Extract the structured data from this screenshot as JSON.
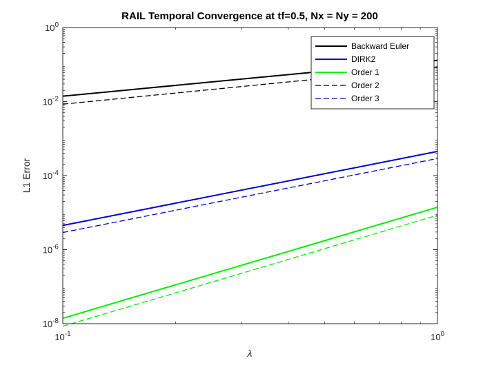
{
  "chart_data": {
    "type": "line",
    "title": "RAIL Temporal Convergence at tf=0.5, Nx = Ny = 200",
    "xlabel": "λ",
    "ylabel": "L1 Error",
    "xscale": "log",
    "yscale": "log",
    "xlim": [
      0.1,
      1
    ],
    "ylim": [
      1e-08,
      1
    ],
    "grid": false,
    "legend_position": "top-right",
    "x_ticks": [
      {
        "value": 0.1,
        "base": "10",
        "exp": "-1"
      },
      {
        "value": 1,
        "base": "10",
        "exp": "0"
      }
    ],
    "y_ticks": [
      {
        "value": 1e-08,
        "base": "10",
        "exp": "-8"
      },
      {
        "value": 1e-06,
        "base": "10",
        "exp": "-6"
      },
      {
        "value": 0.0001,
        "base": "10",
        "exp": "-4"
      },
      {
        "value": 0.01,
        "base": "10",
        "exp": "-2"
      },
      {
        "value": 1,
        "base": "10",
        "exp": "0"
      }
    ],
    "series": [
      {
        "name": "Backward Euler",
        "color": "#000000",
        "dash": "solid",
        "x": [
          0.1,
          1
        ],
        "y": [
          0.014,
          0.13
        ]
      },
      {
        "name": "DIRK2",
        "color": "#0000cc",
        "dash": "solid",
        "x": [
          0.1,
          1
        ],
        "y": [
          4.5e-06,
          0.00045
        ]
      },
      {
        "name": "Order 1",
        "color": "#00ee00",
        "dash": "solid",
        "x": [
          0.1,
          1
        ],
        "y": [
          1.4e-08,
          1.4e-05
        ]
      },
      {
        "name": "Order 2",
        "color": "#000000",
        "dash": "dashed",
        "x": [
          0.1,
          1
        ],
        "y": [
          0.0085,
          0.085
        ]
      },
      {
        "name": "Order 3",
        "color": "#0000cc",
        "dash": "dashed",
        "x": [
          0.1,
          1
        ],
        "y": [
          2.9e-06,
          0.00029
        ]
      },
      {
        "name": "",
        "color": "#00ee00",
        "dash": "dashed",
        "x": [
          0.1,
          1
        ],
        "y": [
          8.5e-09,
          8.5e-06
        ]
      }
    ]
  }
}
